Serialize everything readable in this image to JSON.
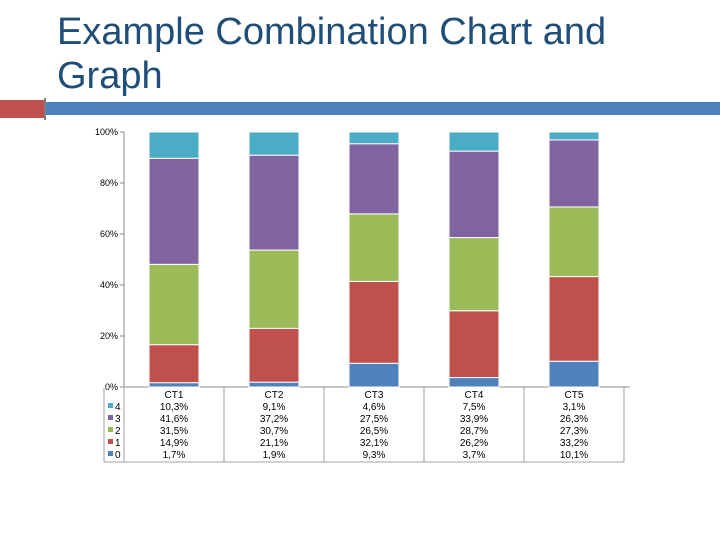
{
  "slide": {
    "title": "Example Combination Chart and Graph"
  },
  "chart_data": {
    "type": "bar",
    "stacked": "100%",
    "categories": [
      "CT1",
      "CT2",
      "CT3",
      "CT4",
      "CT5"
    ],
    "series": [
      {
        "name": "0",
        "color": "#4f81bd",
        "values": [
          1.7,
          1.9,
          9.3,
          3.7,
          10.1
        ],
        "labels": [
          "1,7%",
          "1,9%",
          "9,3%",
          "3,7%",
          "10,1%"
        ]
      },
      {
        "name": "1",
        "color": "#c0504d",
        "values": [
          14.9,
          21.1,
          32.1,
          26.2,
          33.2
        ],
        "labels": [
          "14,9%",
          "21,1%",
          "32,1%",
          "26,2%",
          "33,2%"
        ]
      },
      {
        "name": "2",
        "color": "#9bbb59",
        "values": [
          31.5,
          30.7,
          26.5,
          28.7,
          27.3
        ],
        "labels": [
          "31,5%",
          "30,7%",
          "26,5%",
          "28,7%",
          "27,3%"
        ]
      },
      {
        "name": "3",
        "color": "#8064a2",
        "values": [
          41.6,
          37.2,
          27.5,
          33.9,
          26.3
        ],
        "labels": [
          "41,6%",
          "37,2%",
          "27,5%",
          "33,9%",
          "26,3%"
        ]
      },
      {
        "name": "4",
        "color": "#4bacc6",
        "values": [
          10.3,
          9.1,
          4.6,
          7.5,
          3.1
        ],
        "labels": [
          "10,3%",
          "9,1%",
          "4,6%",
          "7,5%",
          "3,1%"
        ]
      }
    ],
    "yticks": [
      "0%",
      "20%",
      "40%",
      "60%",
      "80%",
      "100%"
    ],
    "ylim": [
      0,
      100
    ],
    "grid": false,
    "legend": "data-table-left"
  }
}
